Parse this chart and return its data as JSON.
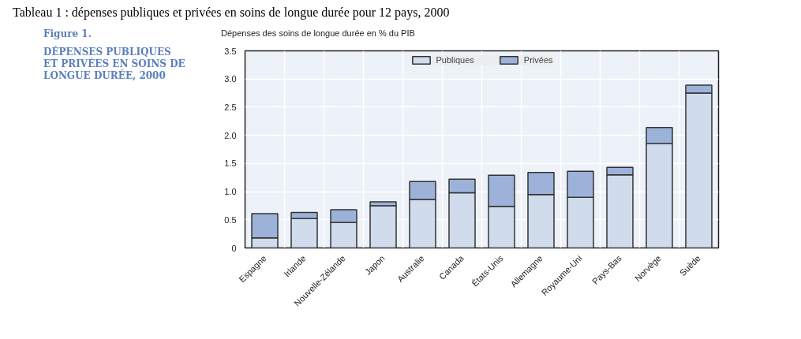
{
  "chart_data": {
    "type": "bar",
    "stacked": true,
    "title": "DÉPENSES PUBLIQUES\nET PRIVÉES EN SOINS DE\nLONGUE DURÉE, 2000",
    "subtitle": "Figure 1.",
    "ylabel": "Dépenses des soins de longue durée en % du PIB",
    "annotations": [
      "Tableau 1 : dépenses publiques et privées en soins de longue durée pour 12 pays, 2000"
    ],
    "categories": [
      "Espagne",
      "Irlande",
      "Nouvelle-Zélande",
      "Japon",
      "Australie",
      "Canada",
      "États-Unis",
      "Allemagne",
      "Royaume-Uni",
      "Pays-Bas",
      "Norvège",
      "Suède"
    ],
    "series": [
      {
        "name": "Publiques",
        "color": "#d0dbeb",
        "values": [
          0.18,
          0.52,
          0.45,
          0.75,
          0.86,
          0.98,
          0.74,
          0.95,
          0.9,
          1.3,
          1.85,
          2.75
        ]
      },
      {
        "name": "Privées",
        "color": "#9db2d8",
        "values": [
          0.43,
          0.11,
          0.23,
          0.07,
          0.32,
          0.24,
          0.55,
          0.39,
          0.46,
          0.13,
          0.29,
          0.14
        ]
      }
    ],
    "ylim": [
      0,
      3.5
    ],
    "yticks": [
      {
        "value": 0,
        "label": "0"
      },
      {
        "value": 0.5,
        "label": "0.5"
      },
      {
        "value": 1,
        "label": "1.0"
      },
      {
        "value": 1.5,
        "label": "1.5"
      },
      {
        "value": 2,
        "label": "2.0"
      },
      {
        "value": 2.5,
        "label": "2.5"
      },
      {
        "value": 3,
        "label": "3.0"
      },
      {
        "value": 3.5,
        "label": "3.5"
      }
    ],
    "grid": true,
    "legend": "top"
  }
}
